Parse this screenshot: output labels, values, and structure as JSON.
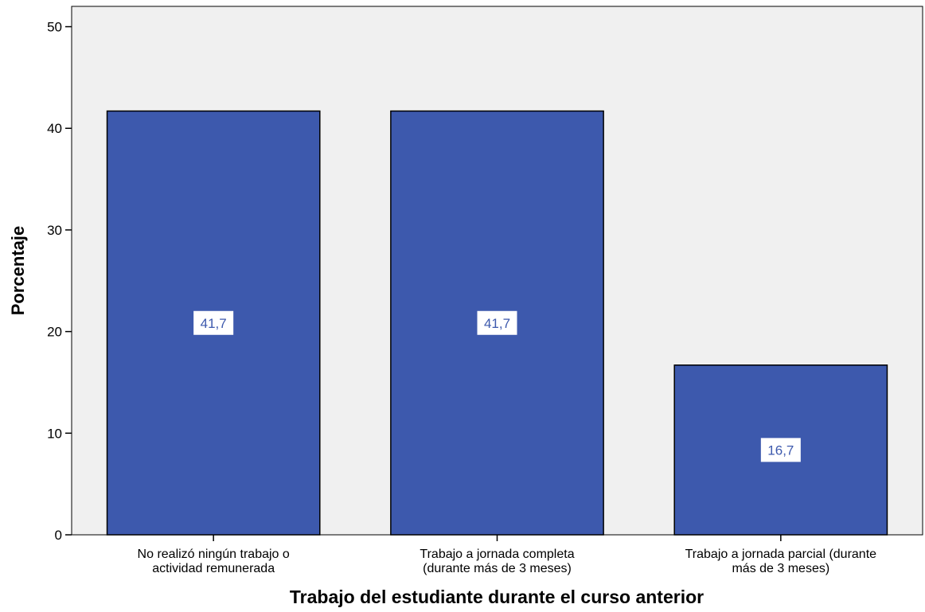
{
  "chart_data": {
    "type": "bar",
    "categories": [
      [
        "No realizó ningún trabajo o",
        "actividad remunerada"
      ],
      [
        "Trabajo a jornada completa",
        "(durante más de 3 meses)"
      ],
      [
        "Trabajo a jornada parcial (durante",
        "más de 3 meses)"
      ]
    ],
    "values": [
      41.7,
      41.7,
      16.7
    ],
    "data_labels": [
      "41,7",
      "41,7",
      "16,7"
    ],
    "xlabel": "Trabajo del estudiante durante el curso anterior",
    "ylabel": "Porcentaje",
    "ylim": [
      0,
      52
    ],
    "yticks": [
      0,
      10,
      20,
      30,
      40,
      50
    ],
    "grid": false,
    "bar_color": "#3d59ad",
    "plot_background": "#f0f0f0"
  }
}
